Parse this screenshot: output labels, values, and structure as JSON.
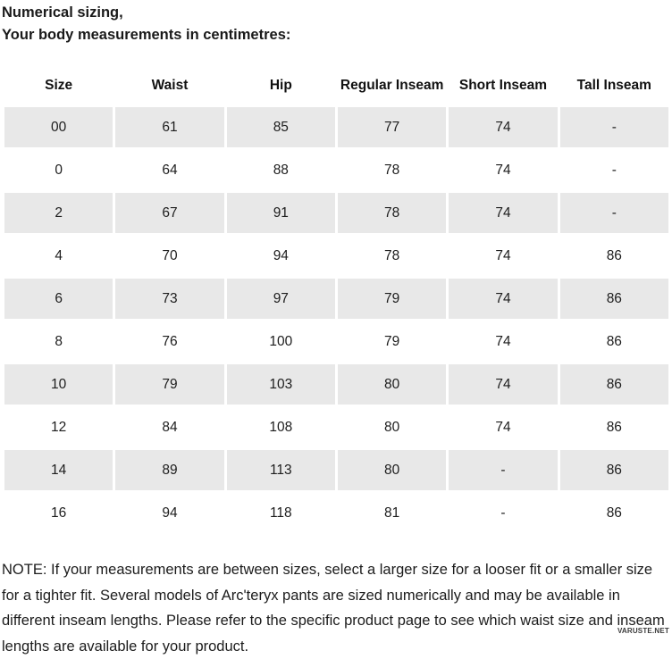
{
  "page": {
    "title_line1": "Numerical sizing,",
    "title_line2": "Your body measurements in centimetres:"
  },
  "table": {
    "columns": [
      "Size",
      "Waist",
      "Hip",
      "Regular Inseam",
      "Short Inseam",
      "Tall Inseam"
    ],
    "rows": [
      [
        "00",
        "61",
        "85",
        "77",
        "74",
        "-"
      ],
      [
        "0",
        "64",
        "88",
        "78",
        "74",
        "-"
      ],
      [
        "2",
        "67",
        "91",
        "78",
        "74",
        "-"
      ],
      [
        "4",
        "70",
        "94",
        "78",
        "74",
        "86"
      ],
      [
        "6",
        "73",
        "97",
        "79",
        "74",
        "86"
      ],
      [
        "8",
        "76",
        "100",
        "79",
        "74",
        "86"
      ],
      [
        "10",
        "79",
        "103",
        "80",
        "74",
        "86"
      ],
      [
        "12",
        "84",
        "108",
        "80",
        "74",
        "86"
      ],
      [
        "14",
        "89",
        "113",
        "80",
        "-",
        "86"
      ],
      [
        "16",
        "94",
        "118",
        "81",
        "-",
        "86"
      ]
    ]
  },
  "note_text": "NOTE: If your measurements are between sizes, select a larger size for a looser fit or a smaller size for a tighter fit. Several models of Arc'teryx pants are sized numerically and may be available in different inseam lengths. Please refer to the specific product page to see which waist size and inseam lengths are available for your product.",
  "watermark": "VARUSTE.NET",
  "colors": {
    "row_shade": "#e8e8e8",
    "text": "#1a1a1a",
    "background": "#ffffff"
  }
}
